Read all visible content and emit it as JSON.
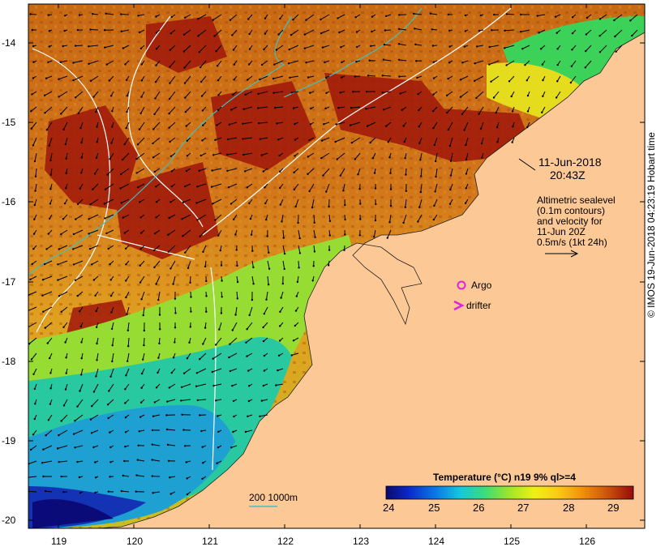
{
  "map": {
    "timestamp_date": "11-Jun-2018",
    "timestamp_time": "20:43Z",
    "altimetry_lines": [
      "Altimetric sealevel",
      "(0.1m contours)",
      "and velocity for",
      "11-Jun 20Z",
      "0.5m/s (1kt 24h)"
    ],
    "legend": {
      "argo_label": "Argo",
      "drifter_label": "drifter",
      "argo_color": "#e020e0",
      "drifter_color": "#e020e0"
    },
    "bathymetry_label": "200  1000m",
    "bathymetry_color": "#40c0c0",
    "credit": "© IMOS 19-Jun-2018 04:23:19 Hobart time",
    "land_color": "#fcc896",
    "axes": {
      "lon_ticks": [
        "119",
        "120",
        "121",
        "122",
        "123",
        "124",
        "125",
        "126"
      ],
      "lat_ticks": [
        "-14",
        "-15",
        "-16",
        "-17",
        "-18",
        "-19",
        "-20"
      ]
    },
    "colorbar": {
      "title": "Temperature (°C) n19 9% ql>=4",
      "min": 24,
      "max": 29.5,
      "ticks": [
        "24",
        "25",
        "26",
        "27",
        "28",
        "29"
      ],
      "colors": [
        "#0a0a6e",
        "#0a28c8",
        "#0a78e6",
        "#14c8dc",
        "#3cdc78",
        "#a0e628",
        "#f0f014",
        "#fac814",
        "#f08c0a",
        "#c8500a",
        "#960a0a"
      ]
    }
  }
}
